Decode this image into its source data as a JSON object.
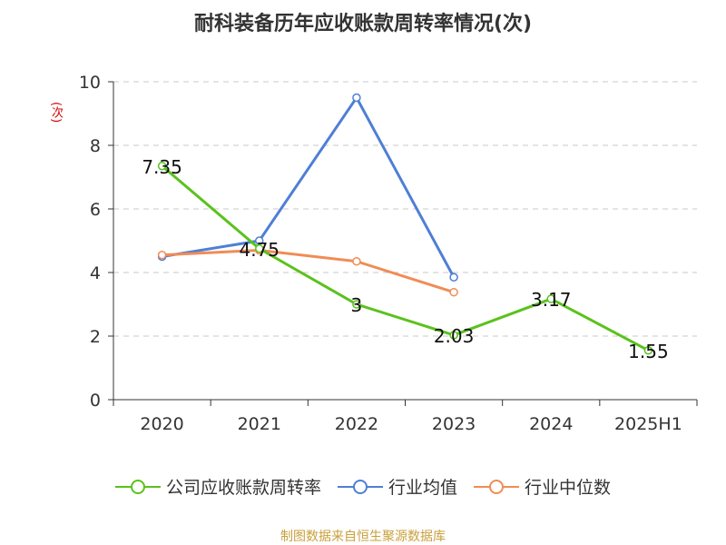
{
  "title": "耐科装备历年应收账款周转率情况(次)",
  "unit": "(次)",
  "source": "制图数据来自恒生聚源数据库",
  "chart_data": {
    "type": "line",
    "categories": [
      "2020",
      "2021",
      "2022",
      "2023",
      "2024",
      "2025H1"
    ],
    "ylim": [
      0,
      10
    ],
    "yticks": [
      0,
      2,
      4,
      6,
      8,
      10
    ],
    "grid": true,
    "legend_position": "bottom",
    "series": [
      {
        "name": "公司应收账款周转率",
        "color": "#5ac21c",
        "values": [
          7.35,
          4.75,
          3,
          2.03,
          3.17,
          1.55
        ],
        "labels": [
          "7.35",
          "4.75",
          "3",
          "2.03",
          "3.17",
          "1.55"
        ]
      },
      {
        "name": "行业均值",
        "color": "#4e7fd6",
        "values": [
          4.5,
          5.0,
          9.5,
          3.85,
          null,
          null
        ]
      },
      {
        "name": "行业中位数",
        "color": "#f08c56",
        "values": [
          4.55,
          4.7,
          4.35,
          3.38,
          null,
          null
        ]
      }
    ]
  }
}
